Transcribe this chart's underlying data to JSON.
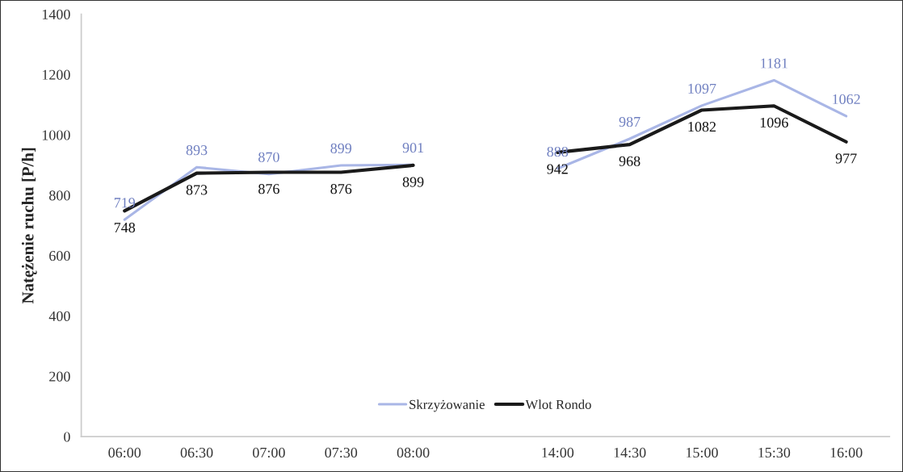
{
  "chart_data": {
    "type": "line",
    "ylabel": "Natężenie ruchu [P/h]",
    "categories": [
      "06:00",
      "06:30",
      "07:00",
      "07:30",
      "08:00",
      null,
      "14:00",
      "14:30",
      "15:00",
      "15:30",
      "16:00"
    ],
    "series": [
      {
        "name": "Skrzyżowanie",
        "color": "#a9b6e6",
        "values": [
          719,
          893,
          870,
          899,
          901,
          null,
          888,
          987,
          1097,
          1181,
          1062
        ]
      },
      {
        "name": "Wlot Rondo",
        "color": "#1a1a1a",
        "values": [
          748,
          873,
          876,
          876,
          899,
          null,
          942,
          968,
          1082,
          1096,
          977
        ]
      }
    ],
    "ylim": [
      0,
      1400
    ],
    "yticks": [
      0,
      200,
      400,
      600,
      800,
      1000,
      1200,
      1400
    ],
    "grid": false,
    "legend": "bottom",
    "data_labels": true,
    "marker": "none",
    "line_style": "solid"
  }
}
